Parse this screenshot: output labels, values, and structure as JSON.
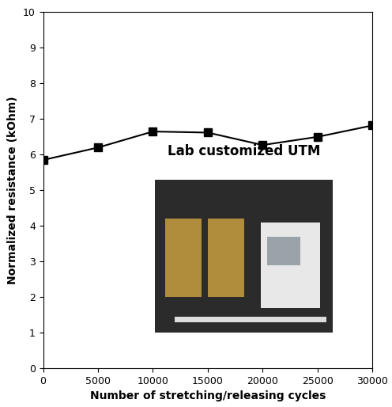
{
  "chart_data": {
    "type": "line",
    "x_label": "Number of stretching/releasing cycles",
    "y_label": "Normalized resistance (kOhm)",
    "x": [
      0,
      5000,
      10000,
      15000,
      20000,
      25000,
      30000
    ],
    "values": [
      5.85,
      6.2,
      6.65,
      6.62,
      6.27,
      6.5,
      6.82
    ],
    "color": "#000000",
    "marker": "square",
    "line_style": "solid",
    "xlim": [
      0,
      30000
    ],
    "xticks": [
      0,
      5000,
      10000,
      15000,
      20000,
      25000,
      30000
    ],
    "ylim": [
      0,
      10
    ],
    "yticks": [
      0,
      1,
      2,
      3,
      4,
      5,
      6,
      7,
      8,
      9,
      10
    ],
    "grid": false,
    "annotations": [
      "Lab customized UTM"
    ]
  }
}
